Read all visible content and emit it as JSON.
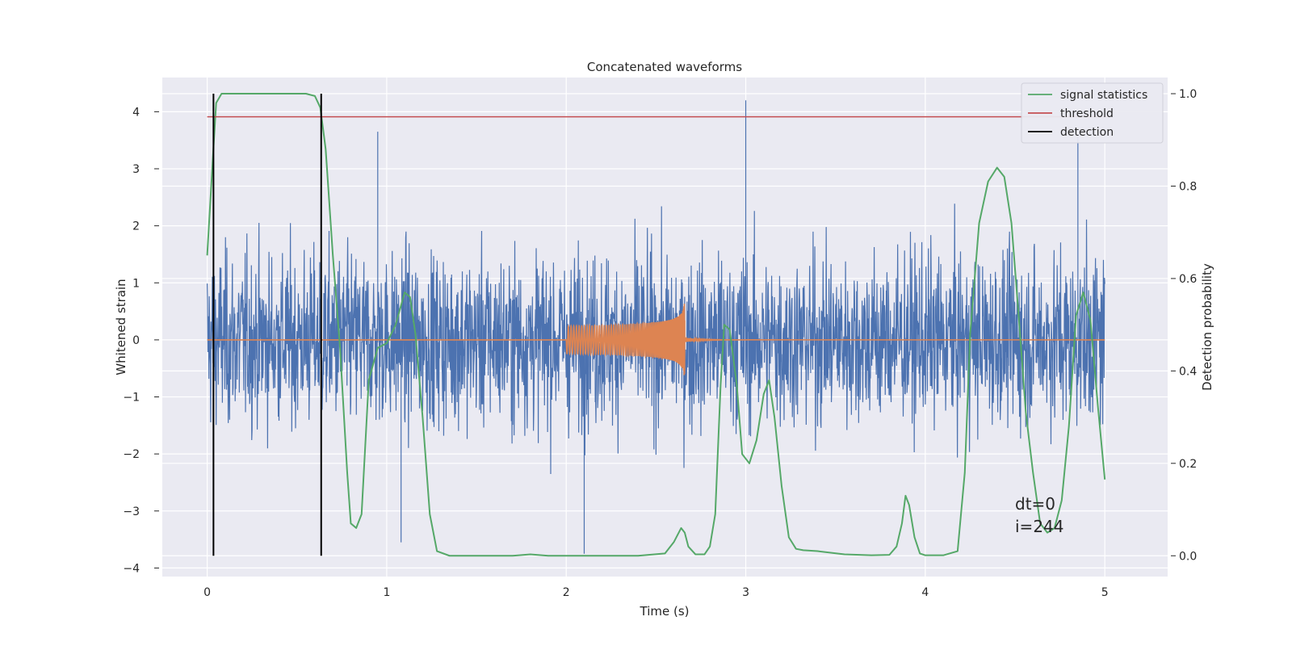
{
  "chart_data": {
    "type": "line",
    "title": "Concatenated waveforms",
    "xlabel": "Time (s)",
    "ylabel": "Whitened strain",
    "y2label": "Detection probability",
    "xlim": [
      -0.25,
      5.35
    ],
    "ylim": [
      -4.15,
      4.6
    ],
    "y2lim": [
      -0.045,
      1.035
    ],
    "xticks": [
      0,
      1,
      2,
      3,
      4,
      5
    ],
    "yticks": [
      -4,
      -3,
      -2,
      -1,
      0,
      1,
      2,
      3,
      4
    ],
    "y2ticks": [
      0.0,
      0.2,
      0.4,
      0.6,
      0.8,
      1.0
    ],
    "y2tick_labels": [
      "0.0",
      "0.2",
      "0.4",
      "0.6",
      "0.8",
      "1.0"
    ],
    "grid": true,
    "legend_position": "top-right",
    "legend": [
      "signal statistics",
      "threshold",
      "detection"
    ],
    "colors": {
      "background": "#eaeaf2",
      "grid": "#ffffff",
      "strain": "#4c72b0",
      "template": "#dd8452",
      "signal_statistics": "#55a868",
      "threshold": "#c44e52",
      "detection": "#000000"
    },
    "series": [
      {
        "name": "signal statistics",
        "axis": "right",
        "x": [
          0.0,
          0.03,
          0.05,
          0.08,
          0.12,
          0.2,
          0.4,
          0.55,
          0.6,
          0.63,
          0.66,
          0.7,
          0.74,
          0.78,
          0.8,
          0.83,
          0.86,
          0.9,
          0.95,
          1.0,
          1.05,
          1.1,
          1.13,
          1.16,
          1.2,
          1.24,
          1.28,
          1.35,
          1.5,
          1.7,
          1.8,
          1.9,
          2.1,
          2.4,
          2.55,
          2.6,
          2.64,
          2.66,
          2.68,
          2.72,
          2.77,
          2.8,
          2.83,
          2.86,
          2.88,
          2.91,
          2.95,
          2.98,
          3.02,
          3.06,
          3.1,
          3.13,
          3.16,
          3.2,
          3.24,
          3.28,
          3.32,
          3.4,
          3.55,
          3.7,
          3.8,
          3.84,
          3.87,
          3.89,
          3.91,
          3.94,
          3.97,
          4.0,
          4.1,
          4.18,
          4.22,
          4.25,
          4.3,
          4.35,
          4.4,
          4.44,
          4.48,
          4.52,
          4.56,
          4.6,
          4.64,
          4.68,
          4.72,
          4.76,
          4.8,
          4.84,
          4.88,
          4.92,
          4.96,
          5.0
        ],
        "values": [
          0.65,
          0.85,
          0.98,
          1.0,
          1.0,
          1.0,
          1.0,
          1.0,
          0.995,
          0.97,
          0.88,
          0.65,
          0.45,
          0.18,
          0.07,
          0.06,
          0.09,
          0.38,
          0.45,
          0.46,
          0.5,
          0.57,
          0.56,
          0.48,
          0.3,
          0.09,
          0.01,
          0.0,
          0.0,
          0.0,
          0.003,
          0.0,
          0.0,
          0.0,
          0.005,
          0.03,
          0.06,
          0.05,
          0.02,
          0.003,
          0.003,
          0.02,
          0.09,
          0.37,
          0.5,
          0.49,
          0.37,
          0.22,
          0.2,
          0.25,
          0.35,
          0.38,
          0.3,
          0.15,
          0.04,
          0.015,
          0.012,
          0.01,
          0.003,
          0.001,
          0.002,
          0.02,
          0.07,
          0.13,
          0.11,
          0.04,
          0.005,
          0.001,
          0.001,
          0.01,
          0.18,
          0.48,
          0.72,
          0.81,
          0.84,
          0.82,
          0.72,
          0.52,
          0.31,
          0.18,
          0.07,
          0.05,
          0.06,
          0.12,
          0.28,
          0.52,
          0.57,
          0.51,
          0.33,
          0.165
        ]
      },
      {
        "name": "threshold",
        "axis": "right",
        "x": [
          0.0,
          5.03
        ],
        "values": [
          0.95,
          0.95
        ]
      },
      {
        "name": "detection",
        "axis": "right",
        "x": [
          0.035,
          0.035,
          0.635,
          0.635
        ],
        "values": [
          0.0,
          1.0,
          0.0,
          1.0
        ]
      }
    ],
    "strain_noise": {
      "x_range": [
        0.0,
        5.0
      ],
      "approx_range": [
        -3.8,
        4.2
      ],
      "notable_spikes": [
        [
          0.95,
          3.65
        ],
        [
          2.1,
          -3.75
        ],
        [
          3.0,
          4.2
        ],
        [
          4.85,
          3.6
        ],
        [
          1.08,
          -3.55
        ]
      ]
    },
    "template_chirp": {
      "x_range": [
        2.0,
        2.66
      ],
      "peak_amplitude": 0.72,
      "ringdown_end": 3.0
    },
    "annotations": [
      "dt=0",
      "i=244"
    ]
  }
}
